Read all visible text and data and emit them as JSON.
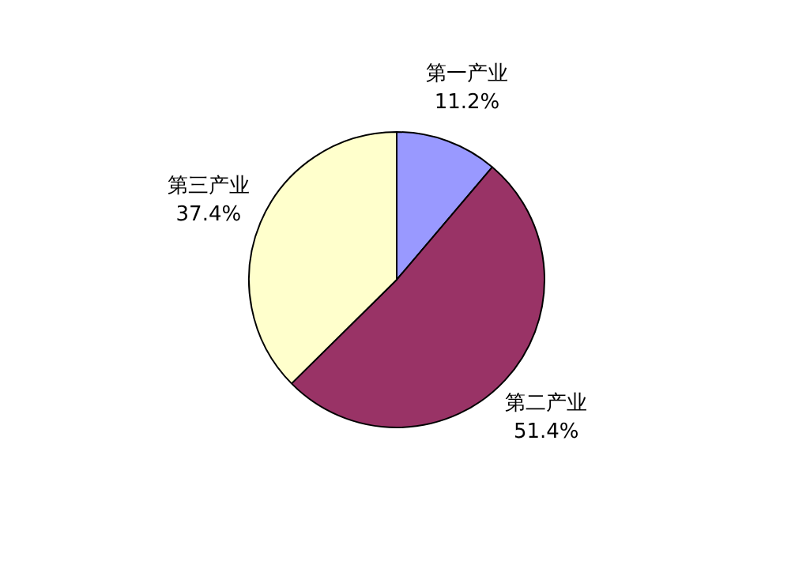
{
  "chart_data": {
    "type": "pie",
    "categories": [
      "第一产业",
      "第二产业",
      "第三产业"
    ],
    "values": [
      11.2,
      51.4,
      37.4
    ],
    "value_labels": [
      "11.2%",
      "51.4%",
      "37.4%"
    ],
    "colors": [
      "#9999ff",
      "#993366",
      "#ffffcc"
    ]
  }
}
